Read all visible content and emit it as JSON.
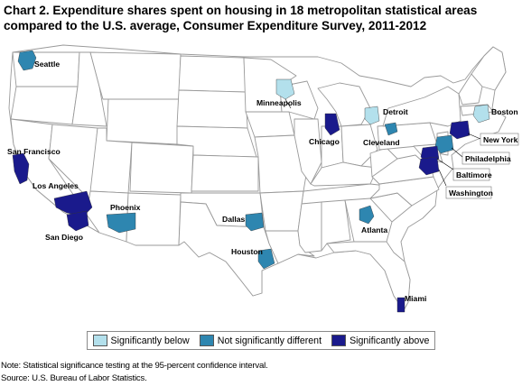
{
  "title": "Chart 2. Expenditure shares spent on housing in 18 metropolitan statistical areas compared to the U.S. average, Consumer Expenditure Survey, 2011-2012",
  "colors": {
    "significantly_below": "#b3e0ec",
    "not_significantly_different": "#2e86b0",
    "significantly_above": "#1a1a8c",
    "state_fill": "#ffffff",
    "state_border": "#9a9a9a"
  },
  "legend": [
    {
      "label": "Significantly below",
      "category": "significantly_below"
    },
    {
      "label": "Not significantly different",
      "category": "not_significantly_different"
    },
    {
      "label": "Significantly above",
      "category": "significantly_above"
    }
  ],
  "areas": [
    {
      "name": "Seattle",
      "category": "not_significantly_different"
    },
    {
      "name": "San Francisco",
      "category": "significantly_above"
    },
    {
      "name": "Los Angeles",
      "category": "significantly_above"
    },
    {
      "name": "San Diego",
      "category": "significantly_above"
    },
    {
      "name": "Phoenix",
      "category": "not_significantly_different"
    },
    {
      "name": "Minneapolis",
      "category": "significantly_below"
    },
    {
      "name": "Chicago",
      "category": "significantly_above"
    },
    {
      "name": "Detroit",
      "category": "significantly_below"
    },
    {
      "name": "Cleveland",
      "category": "not_significantly_different"
    },
    {
      "name": "Dallas",
      "category": "not_significantly_different"
    },
    {
      "name": "Houston",
      "category": "not_significantly_different"
    },
    {
      "name": "Atlanta",
      "category": "not_significantly_different"
    },
    {
      "name": "Miami",
      "category": "significantly_above"
    },
    {
      "name": "Boston",
      "category": "significantly_below"
    },
    {
      "name": "New York",
      "category": "significantly_above"
    },
    {
      "name": "Philadelphia",
      "category": "not_significantly_different"
    },
    {
      "name": "Baltimore",
      "category": "significantly_above"
    },
    {
      "name": "Washington",
      "category": "significantly_above"
    }
  ],
  "note": "Note: Statistical significance testing at the 95-percent confidence interval.",
  "source": "Source: U.S. Bureau of Labor Statistics."
}
